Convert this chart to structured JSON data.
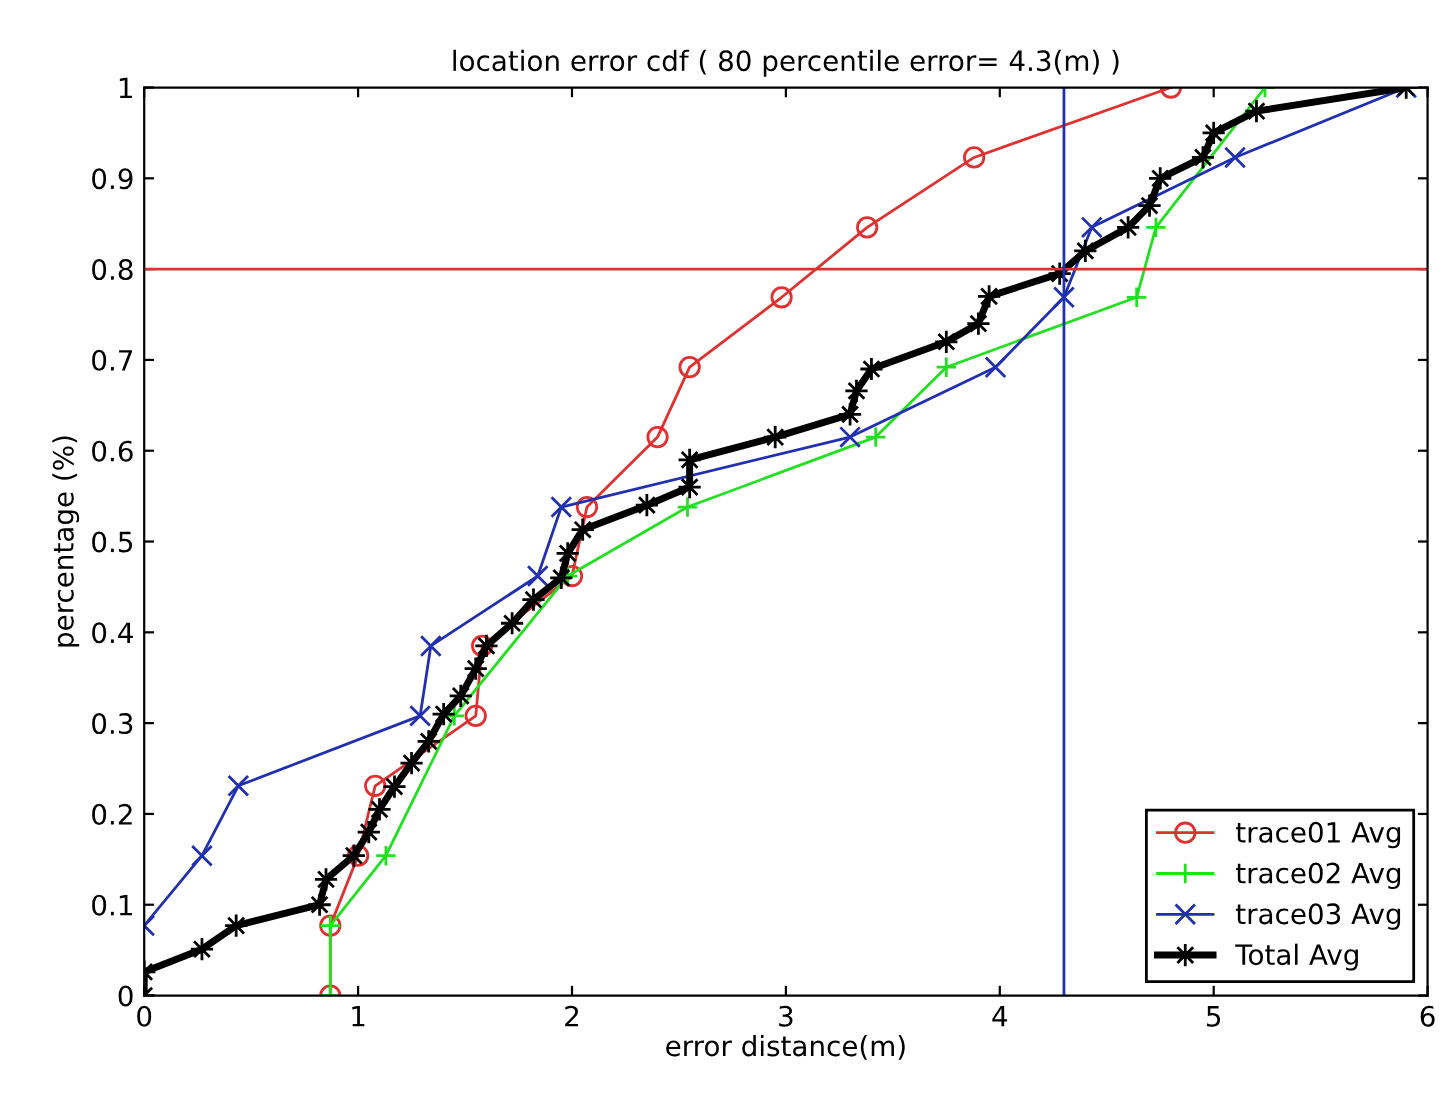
{
  "chart_data": {
    "type": "line",
    "title": "location error cdf ( 80 percentile error= 4.3(m) )",
    "xlabel": "error distance(m)",
    "ylabel": "percentage (%)",
    "xlim": [
      0,
      6
    ],
    "ylim": [
      0,
      1
    ],
    "xticks": [
      0,
      1,
      2,
      3,
      4,
      5,
      6
    ],
    "yticks": [
      0,
      0.1,
      0.2,
      0.3,
      0.4,
      0.5,
      0.6,
      0.7,
      0.8,
      0.9,
      1
    ],
    "grid": false,
    "legend": "bottom right",
    "series": [
      {
        "name": "trace01 Avg",
        "color": "#e03030",
        "marker": "circle",
        "x": [
          0.87,
          0.87,
          1.0,
          1.08,
          1.55,
          1.58,
          2.0,
          2.07,
          2.4,
          2.55,
          2.98,
          3.38,
          3.88,
          4.8
        ],
        "values": [
          0,
          0.077,
          0.154,
          0.231,
          0.308,
          0.385,
          0.462,
          0.538,
          0.615,
          0.692,
          0.769,
          0.846,
          0.923,
          1.0
        ]
      },
      {
        "name": "trace02 Avg",
        "color": "#20e020",
        "marker": "cross",
        "x": [
          0.87,
          0.87,
          1.13,
          1.45,
          1.98,
          2.54,
          3.42,
          3.75,
          4.64,
          4.73,
          5.24
        ],
        "values": [
          0,
          0.077,
          0.154,
          0.308,
          0.462,
          0.538,
          0.615,
          0.692,
          0.769,
          0.846,
          1.0
        ]
      },
      {
        "name": "trace03 Avg",
        "color": "#2030b0",
        "marker": "x",
        "x": [
          0,
          0.27,
          0.44,
          1.29,
          1.34,
          1.84,
          1.95,
          3.3,
          3.98,
          4.3,
          4.43,
          5.1,
          5.9
        ],
        "values": [
          0.077,
          0.154,
          0.231,
          0.308,
          0.385,
          0.462,
          0.538,
          0.615,
          0.692,
          0.769,
          0.846,
          0.923,
          1.0
        ]
      },
      {
        "name": "Total Avg",
        "color": "#000000",
        "marker": "star",
        "x": [
          0,
          0,
          0.27,
          0.43,
          0.82,
          0.85,
          0.98,
          1.05,
          1.1,
          1.17,
          1.25,
          1.33,
          1.4,
          1.48,
          1.55,
          1.6,
          1.72,
          1.82,
          1.95,
          1.98,
          2.05,
          2.35,
          2.55,
          2.55,
          2.95,
          3.3,
          3.33,
          3.4,
          3.75,
          3.9,
          3.95,
          4.28,
          4.4,
          4.6,
          4.7,
          4.75,
          4.95,
          5.0,
          5.2,
          5.9
        ],
        "values": [
          0,
          0.026,
          0.051,
          0.077,
          0.1,
          0.128,
          0.154,
          0.18,
          0.205,
          0.23,
          0.256,
          0.28,
          0.31,
          0.33,
          0.36,
          0.385,
          0.41,
          0.436,
          0.46,
          0.487,
          0.513,
          0.54,
          0.56,
          0.59,
          0.615,
          0.64,
          0.666,
          0.69,
          0.72,
          0.74,
          0.77,
          0.795,
          0.82,
          0.846,
          0.87,
          0.9,
          0.923,
          0.95,
          0.974,
          1.0
        ]
      }
    ],
    "ref_lines": [
      {
        "axis": "y",
        "value": 0.8,
        "label": null,
        "color": "#e03030"
      },
      {
        "axis": "x",
        "value": 4.3,
        "label": null,
        "color": "#2030b0"
      }
    ]
  }
}
